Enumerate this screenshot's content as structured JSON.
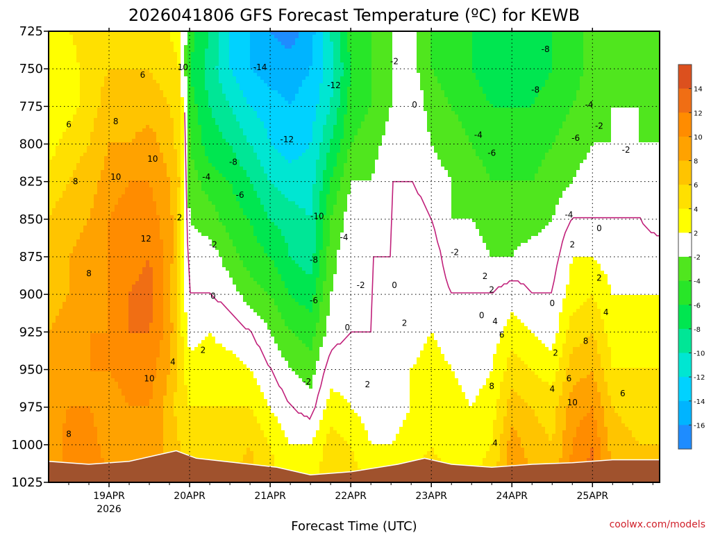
{
  "chart_data": {
    "type": "heatmap",
    "title": "2026041806 GFS Forecast Temperature (ºC) for KEWB",
    "xlabel": "Forecast Time (UTC)",
    "ylabel": "",
    "credit": "coolwx.com/models",
    "x_unit": "hours since 2026-04-18 06Z",
    "xlim": [
      0,
      182
    ],
    "ylim": [
      1025,
      725
    ],
    "y_ticks": [
      725,
      750,
      775,
      800,
      825,
      850,
      875,
      900,
      925,
      950,
      975,
      1000,
      1025
    ],
    "x_ticks": [
      {
        "hour": 18,
        "label": "19APR"
      },
      {
        "hour": 42,
        "label": "20APR"
      },
      {
        "hour": 66,
        "label": "21APR"
      },
      {
        "hour": 90,
        "label": "22APR"
      },
      {
        "hour": 114,
        "label": "23APR"
      },
      {
        "hour": 138,
        "label": "24APR"
      },
      {
        "hour": 162,
        "label": "25APR"
      }
    ],
    "x_sub_label": "2026",
    "x_sub_label_hour": 18,
    "color_levels": [
      -16,
      -14,
      -12,
      -10,
      -8,
      -6,
      -4,
      -2,
      2,
      4,
      6,
      8,
      10,
      12,
      14
    ],
    "colorbar_tick_labels": [
      "14",
      "12",
      "10",
      "8",
      "6",
      "4",
      "2",
      "-2",
      "-4",
      "-6",
      "-8",
      "-10",
      "-12",
      "-14",
      "-16"
    ],
    "colors": {
      "band_lt_-16": "#1e8cff",
      "band_-16_-14": "#00b4ff",
      "band_-14_-12": "#00d2ff",
      "band_-12_-10": "#00e6d2",
      "band_-10_-8": "#00e696",
      "band_-8_-6": "#00e650",
      "band_-6_-4": "#28e628",
      "band_-4_-2": "#50e61e",
      "band_-2_2": "#ffffff",
      "band_2_4": "#ffff00",
      "band_4_6": "#ffe000",
      "band_6_8": "#ffc400",
      "band_8_10": "#ffa200",
      "band_10_12": "#ff8c00",
      "band_12_14": "#f06e14",
      "band_gt_14": "#dc501e",
      "ground": "#a0522d",
      "zero_contour": "#c0207a"
    },
    "columns": [
      {
        "hour": 0,
        "temps": [
          4,
          3,
          2,
          3,
          5,
          6,
          6,
          7,
          8,
          8,
          9,
          8,
          9
        ]
      },
      {
        "hour": 6,
        "temps": [
          4,
          3,
          3,
          5,
          6,
          7,
          8,
          8,
          9,
          9,
          10,
          11,
          11
        ]
      },
      {
        "hour": 12,
        "temps": [
          5,
          5,
          5,
          6,
          7,
          8,
          9,
          9,
          10,
          10,
          10,
          11,
          12
        ]
      },
      {
        "hour": 18,
        "temps": [
          5,
          6,
          7,
          8,
          9,
          10,
          10,
          10,
          10,
          10,
          9,
          9,
          10
        ]
      },
      {
        "hour": 24,
        "temps": [
          5,
          6,
          7,
          8,
          10,
          11,
          11,
          12,
          12,
          11,
          10,
          9,
          9
        ]
      },
      {
        "hour": 30,
        "temps": [
          5,
          6,
          7,
          9,
          10,
          11,
          12,
          13,
          12,
          11,
          10,
          10,
          10
        ]
      },
      {
        "hour": 36,
        "temps": [
          4,
          5,
          6,
          7,
          8,
          9,
          9,
          9,
          9,
          8,
          7,
          7,
          8
        ]
      },
      {
        "hour": 39,
        "temps": [
          3,
          4,
          5,
          5,
          6,
          5,
          5,
          4,
          5,
          5,
          5,
          6,
          6
        ]
      },
      {
        "hour": 42,
        "temps": [
          -5,
          -6,
          -5,
          -4,
          -3,
          -2,
          -1,
          0,
          1,
          3,
          4,
          5,
          5
        ]
      },
      {
        "hour": 48,
        "temps": [
          -8,
          -9,
          -8,
          -7,
          -5,
          -3,
          -1,
          0,
          2,
          3,
          4,
          5,
          5
        ]
      },
      {
        "hour": 54,
        "temps": [
          -12,
          -12,
          -10,
          -8,
          -6,
          -5,
          -3,
          -1,
          1,
          3,
          4,
          5,
          6
        ]
      },
      {
        "hour": 60,
        "temps": [
          -14,
          -14,
          -12,
          -10,
          -8,
          -6,
          -5,
          -3,
          0,
          2,
          4,
          6,
          7
        ]
      },
      {
        "hour": 66,
        "temps": [
          -16,
          -15,
          -13,
          -12,
          -10,
          -8,
          -6,
          -4,
          -2,
          0,
          2,
          4,
          5
        ]
      },
      {
        "hour": 72,
        "temps": [
          -17,
          -15,
          -14,
          -13,
          -11,
          -9,
          -8,
          -6,
          -4,
          -2,
          0,
          2,
          2
        ]
      },
      {
        "hour": 78,
        "temps": [
          -15,
          -14,
          -13,
          -12,
          -11,
          -10,
          -9,
          -7,
          -5,
          -3,
          -1,
          2,
          3
        ]
      },
      {
        "hour": 84,
        "temps": [
          -10,
          -11,
          -10,
          -8,
          -6,
          -4,
          -3,
          -2,
          -1,
          1,
          3,
          5,
          6
        ]
      },
      {
        "hour": 90,
        "temps": [
          -5,
          -6,
          -5,
          -4,
          -2,
          -1,
          0,
          0,
          0,
          1,
          2,
          4,
          5
        ]
      },
      {
        "hour": 96,
        "temps": [
          -4,
          -4,
          -4,
          -3,
          -2,
          -1,
          0,
          0,
          0,
          0,
          1,
          2,
          4
        ]
      },
      {
        "hour": 102,
        "temps": [
          -2,
          -2,
          -2,
          -1,
          0,
          0,
          0,
          1,
          1,
          1,
          1,
          2,
          3
        ]
      },
      {
        "hour": 108,
        "temps": [
          -1,
          -1,
          0,
          0,
          0,
          1,
          1,
          1,
          1,
          2,
          2,
          3,
          4
        ]
      },
      {
        "hour": 114,
        "temps": [
          -4,
          -4,
          -3,
          -2,
          -1,
          0,
          1,
          1,
          2,
          3,
          4,
          4,
          5
        ]
      },
      {
        "hour": 120,
        "temps": [
          -5,
          -5,
          -4,
          -3,
          -2,
          -2,
          -1,
          0,
          1,
          2,
          3,
          3,
          4
        ]
      },
      {
        "hour": 126,
        "temps": [
          -6,
          -6,
          -5,
          -4,
          -3,
          -2,
          -1,
          0,
          0,
          1,
          2,
          3,
          4
        ]
      },
      {
        "hour": 132,
        "temps": [
          -7,
          -7,
          -6,
          -5,
          -4,
          -3,
          -2,
          0,
          1,
          2,
          3,
          4,
          5
        ]
      },
      {
        "hour": 138,
        "temps": [
          -7,
          -7,
          -6,
          -5,
          -4,
          -3,
          -2,
          1,
          3,
          5,
          7,
          9,
          10
        ]
      },
      {
        "hour": 144,
        "temps": [
          -7,
          -7,
          -6,
          -5,
          -4,
          -3,
          -1,
          0,
          2,
          4,
          6,
          7,
          8
        ]
      },
      {
        "hour": 150,
        "temps": [
          -6,
          -6,
          -5,
          -4,
          -3,
          -2,
          -1,
          0,
          1,
          3,
          5,
          6,
          7
        ]
      },
      {
        "hour": 156,
        "temps": [
          -5,
          -5,
          -4,
          -3,
          -2,
          0,
          2,
          3,
          5,
          7,
          9,
          10,
          11
        ]
      },
      {
        "hour": 162,
        "temps": [
          -3,
          -3,
          -3,
          -2,
          -1,
          0,
          2,
          4,
          6,
          8,
          10,
          12,
          13
        ]
      },
      {
        "hour": 168,
        "temps": [
          -3,
          -3,
          -2,
          -2,
          -1,
          0,
          1,
          2,
          3,
          4,
          6,
          7,
          8
        ]
      },
      {
        "hour": 176,
        "temps": [
          -3,
          -3,
          -2,
          -2,
          -1,
          0,
          1,
          2,
          3,
          4,
          5,
          6,
          7
        ]
      },
      {
        "hour": 182,
        "temps": [
          -3,
          -3,
          -3,
          -2,
          -2,
          -1,
          1,
          2,
          3,
          4,
          5,
          6,
          7
        ]
      }
    ],
    "surface_pressure": [
      {
        "hour": 0,
        "hPa": 1011
      },
      {
        "hour": 12,
        "hPa": 1013
      },
      {
        "hour": 24,
        "hPa": 1011
      },
      {
        "hour": 32,
        "hPa": 1007
      },
      {
        "hour": 38,
        "hPa": 1004
      },
      {
        "hour": 44,
        "hPa": 1009
      },
      {
        "hour": 56,
        "hPa": 1012
      },
      {
        "hour": 68,
        "hPa": 1015
      },
      {
        "hour": 78,
        "hPa": 1020
      },
      {
        "hour": 90,
        "hPa": 1018
      },
      {
        "hour": 104,
        "hPa": 1013
      },
      {
        "hour": 112,
        "hPa": 1009
      },
      {
        "hour": 120,
        "hPa": 1013
      },
      {
        "hour": 132,
        "hPa": 1015
      },
      {
        "hour": 144,
        "hPa": 1013
      },
      {
        "hour": 156,
        "hPa": 1012
      },
      {
        "hour": 168,
        "hPa": 1010
      },
      {
        "hour": 182,
        "hPa": 1010
      }
    ],
    "contour_labels": [
      {
        "text": "6",
        "hour": 6,
        "p": 787
      },
      {
        "text": "8",
        "hour": 8,
        "p": 825
      },
      {
        "text": "8",
        "hour": 12,
        "p": 886
      },
      {
        "text": "8",
        "hour": 6,
        "p": 993
      },
      {
        "text": "6",
        "hour": 28,
        "p": 754
      },
      {
        "text": "8",
        "hour": 20,
        "p": 785
      },
      {
        "text": "10",
        "hour": 20,
        "p": 822
      },
      {
        "text": "10",
        "hour": 31,
        "p": 810
      },
      {
        "text": "12",
        "hour": 29,
        "p": 863
      },
      {
        "text": "10",
        "hour": 30,
        "p": 956
      },
      {
        "text": "10",
        "hour": 40,
        "p": 749
      },
      {
        "text": "2",
        "hour": 39,
        "p": 849
      },
      {
        "text": "4",
        "hour": 37,
        "p": 945
      },
      {
        "text": "-4",
        "hour": 47,
        "p": 822
      },
      {
        "text": "-2",
        "hour": 49,
        "p": 867
      },
      {
        "text": "0",
        "hour": 49,
        "p": 901
      },
      {
        "text": "2",
        "hour": 46,
        "p": 937
      },
      {
        "text": "-6",
        "hour": 57,
        "p": 834
      },
      {
        "text": "-8",
        "hour": 55,
        "p": 812
      },
      {
        "text": "-14",
        "hour": 63,
        "p": 749
      },
      {
        "text": "-12",
        "hour": 71,
        "p": 797
      },
      {
        "text": "-12",
        "hour": 85,
        "p": 761
      },
      {
        "text": "-10",
        "hour": 80,
        "p": 848
      },
      {
        "text": "-8",
        "hour": 79,
        "p": 877
      },
      {
        "text": "-6",
        "hour": 79,
        "p": 904
      },
      {
        "text": "-2",
        "hour": 77,
        "p": 958
      },
      {
        "text": "-4",
        "hour": 88,
        "p": 862
      },
      {
        "text": "-2",
        "hour": 93,
        "p": 894
      },
      {
        "text": "0",
        "hour": 89,
        "p": 922
      },
      {
        "text": "2",
        "hour": 95,
        "p": 960
      },
      {
        "text": "-2",
        "hour": 103,
        "p": 745
      },
      {
        "text": "0",
        "hour": 109,
        "p": 774
      },
      {
        "text": "0",
        "hour": 103,
        "p": 894
      },
      {
        "text": "2",
        "hour": 106,
        "p": 919
      },
      {
        "text": "-2",
        "hour": 121,
        "p": 872
      },
      {
        "text": "-8",
        "hour": 148,
        "p": 737
      },
      {
        "text": "-8",
        "hour": 145,
        "p": 764
      },
      {
        "text": "-4",
        "hour": 128,
        "p": 794
      },
      {
        "text": "-6",
        "hour": 132,
        "p": 806
      },
      {
        "text": "-4",
        "hour": 155,
        "p": 847
      },
      {
        "text": "2",
        "hour": 130,
        "p": 888
      },
      {
        "text": "2",
        "hour": 132,
        "p": 897
      },
      {
        "text": "0",
        "hour": 129,
        "p": 914
      },
      {
        "text": "4",
        "hour": 133,
        "p": 918
      },
      {
        "text": "6",
        "hour": 135,
        "p": 927
      },
      {
        "text": "8",
        "hour": 132,
        "p": 961
      },
      {
        "text": "4",
        "hour": 133,
        "p": 999
      },
      {
        "text": "0",
        "hour": 150,
        "p": 906
      },
      {
        "text": "2",
        "hour": 151,
        "p": 939
      },
      {
        "text": "4",
        "hour": 150,
        "p": 963
      },
      {
        "text": "6",
        "hour": 155,
        "p": 956
      },
      {
        "text": "2",
        "hour": 156,
        "p": 867
      },
      {
        "text": "8",
        "hour": 160,
        "p": 931
      },
      {
        "text": "10",
        "hour": 156,
        "p": 972
      },
      {
        "text": "-4",
        "hour": 161,
        "p": 774
      },
      {
        "text": "-6",
        "hour": 157,
        "p": 796
      },
      {
        "text": "-2",
        "hour": 164,
        "p": 788
      },
      {
        "text": "-2",
        "hour": 172,
        "p": 804
      },
      {
        "text": "0",
        "hour": 164,
        "p": 856
      },
      {
        "text": "2",
        "hour": 164,
        "p": 889
      },
      {
        "text": "4",
        "hour": 166,
        "p": 912
      },
      {
        "text": "6",
        "hour": 171,
        "p": 966
      }
    ]
  }
}
